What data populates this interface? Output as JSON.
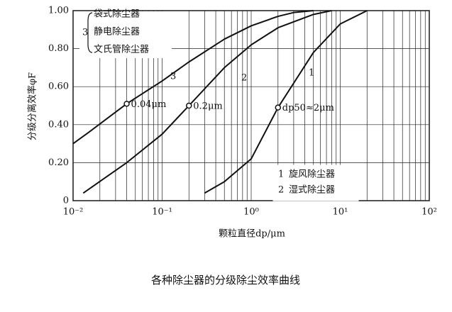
{
  "chart_data": {
    "type": "line",
    "xlabel": "颗粒直径dp/μm",
    "ylabel": "分级分离效率φF",
    "caption": "各种除尘器的分级除尘效率曲线",
    "xscale": "log",
    "xlim": [
      0.01,
      100
    ],
    "xticks": [
      {
        "value": 0.01,
        "label": "10⁻²"
      },
      {
        "value": 0.1,
        "label": "10⁻¹"
      },
      {
        "value": 1,
        "label": "10⁰"
      },
      {
        "value": 10,
        "label": "10¹"
      },
      {
        "value": 100,
        "label": "10²"
      }
    ],
    "ylim": [
      0,
      1
    ],
    "yticks": [
      {
        "value": 0,
        "label": "0"
      },
      {
        "value": 0.2,
        "label": "0.20"
      },
      {
        "value": 0.4,
        "label": "0.40"
      },
      {
        "value": 0.6,
        "label": "0.60"
      },
      {
        "value": 0.8,
        "label": "0.80"
      },
      {
        "value": 1,
        "label": "1.00"
      }
    ],
    "grid": true,
    "color": "#111111",
    "series": [
      {
        "label": "1",
        "names": [
          "旋风除尘器"
        ],
        "x": [
          0.3,
          0.5,
          1,
          2,
          5,
          10,
          20
        ],
        "values": [
          0.04,
          0.1,
          0.22,
          0.49,
          0.78,
          0.93,
          1.0
        ]
      },
      {
        "label": "2",
        "names": [
          "湿式除尘器"
        ],
        "x": [
          0.013,
          0.04,
          0.1,
          0.2,
          0.5,
          1,
          2,
          5,
          8
        ],
        "values": [
          0.04,
          0.2,
          0.35,
          0.5,
          0.7,
          0.82,
          0.91,
          0.98,
          1.0
        ]
      },
      {
        "label": "3",
        "names": [
          "袋式除尘器",
          "静电除尘器",
          "文氏管除尘器"
        ],
        "x": [
          0.01,
          0.015,
          0.04,
          0.1,
          0.2,
          0.5,
          1,
          2,
          3,
          5
        ],
        "values": [
          0.3,
          0.36,
          0.51,
          0.63,
          0.73,
          0.85,
          0.92,
          0.97,
          0.99,
          1.0
        ]
      }
    ],
    "markers": [
      {
        "x": 0.04,
        "y": 0.51,
        "label": "0.04μm"
      },
      {
        "x": 0.2,
        "y": 0.5,
        "label": "0.2μm"
      },
      {
        "x": 2,
        "y": 0.49,
        "label": "dp50≈2μm"
      }
    ]
  }
}
